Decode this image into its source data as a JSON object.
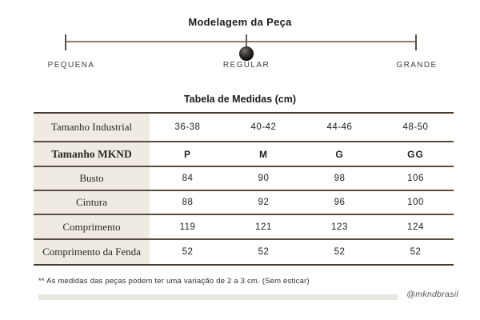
{
  "modelagem": {
    "title": "Modelagem da Peça",
    "labels": [
      "PEQUENA",
      "REGULAR",
      "GRANDE"
    ],
    "selected": "REGULAR"
  },
  "table": {
    "title": "Tabela de Medidas (cm)",
    "rows": [
      {
        "label": "Tamanho Industrial",
        "values": [
          "36-38",
          "40-42",
          "44-46",
          "48-50"
        ]
      },
      {
        "label": "Tamanho MKND",
        "values": [
          "P",
          "M",
          "G",
          "GG"
        ]
      },
      {
        "label": "Busto",
        "values": [
          "84",
          "90",
          "98",
          "106"
        ]
      },
      {
        "label": "Cintura",
        "values": [
          "88",
          "92",
          "96",
          "100"
        ]
      },
      {
        "label": "Comprimento",
        "values": [
          "119",
          "121",
          "123",
          "124"
        ]
      },
      {
        "label": "Comprimento da Fenda",
        "values": [
          "52",
          "52",
          "52",
          "52"
        ]
      }
    ]
  },
  "footnote": "** As medidas das peças podem ter uma variação de 2 a 3 cm. (Sem esticar)",
  "handle": "@mkndbrasil",
  "colors": {
    "background": "#ffffff",
    "header_column_bg": "#efebe3",
    "table_border": "#584c42",
    "slider_track": "#8d7d70",
    "marker": "#141211",
    "footer_bar": "#e8e6e1"
  }
}
